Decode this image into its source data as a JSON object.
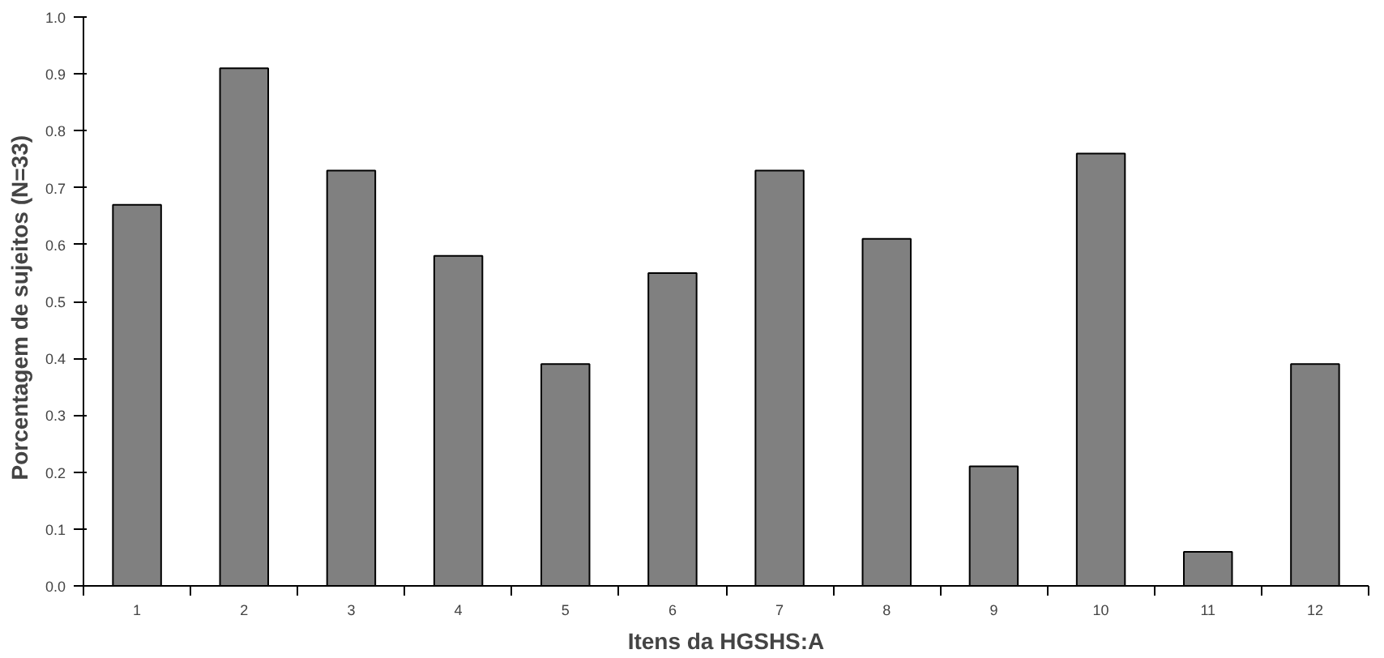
{
  "chart_data": {
    "type": "bar",
    "xlabel": "Itens da HGSHS:A",
    "ylabel": "Porcentagem de sujeitos   (N=33)",
    "categories": [
      "1",
      "2",
      "3",
      "4",
      "5",
      "6",
      "7",
      "8",
      "9",
      "10",
      "11",
      "12"
    ],
    "values": [
      0.67,
      0.91,
      0.73,
      0.58,
      0.39,
      0.55,
      0.73,
      0.61,
      0.21,
      0.76,
      0.06,
      0.39
    ],
    "color": "#808080",
    "ylim": [
      0,
      1.0
    ],
    "yticks": [
      {
        "value": 0,
        "label": "0.0"
      },
      {
        "value": 0.1,
        "label": "0.1"
      },
      {
        "value": 0.2,
        "label": "0.2"
      },
      {
        "value": 0.3,
        "label": "0.3"
      },
      {
        "value": 0.4,
        "label": "0.4"
      },
      {
        "value": 0.5,
        "label": "0.5"
      },
      {
        "value": 0.6,
        "label": "0.6"
      },
      {
        "value": 0.7,
        "label": "0.7"
      },
      {
        "value": 0.8,
        "label": "0.8"
      },
      {
        "value": 0.9,
        "label": "0.9"
      },
      {
        "value": 1.0,
        "label": "1.0"
      }
    ],
    "grid": false
  }
}
